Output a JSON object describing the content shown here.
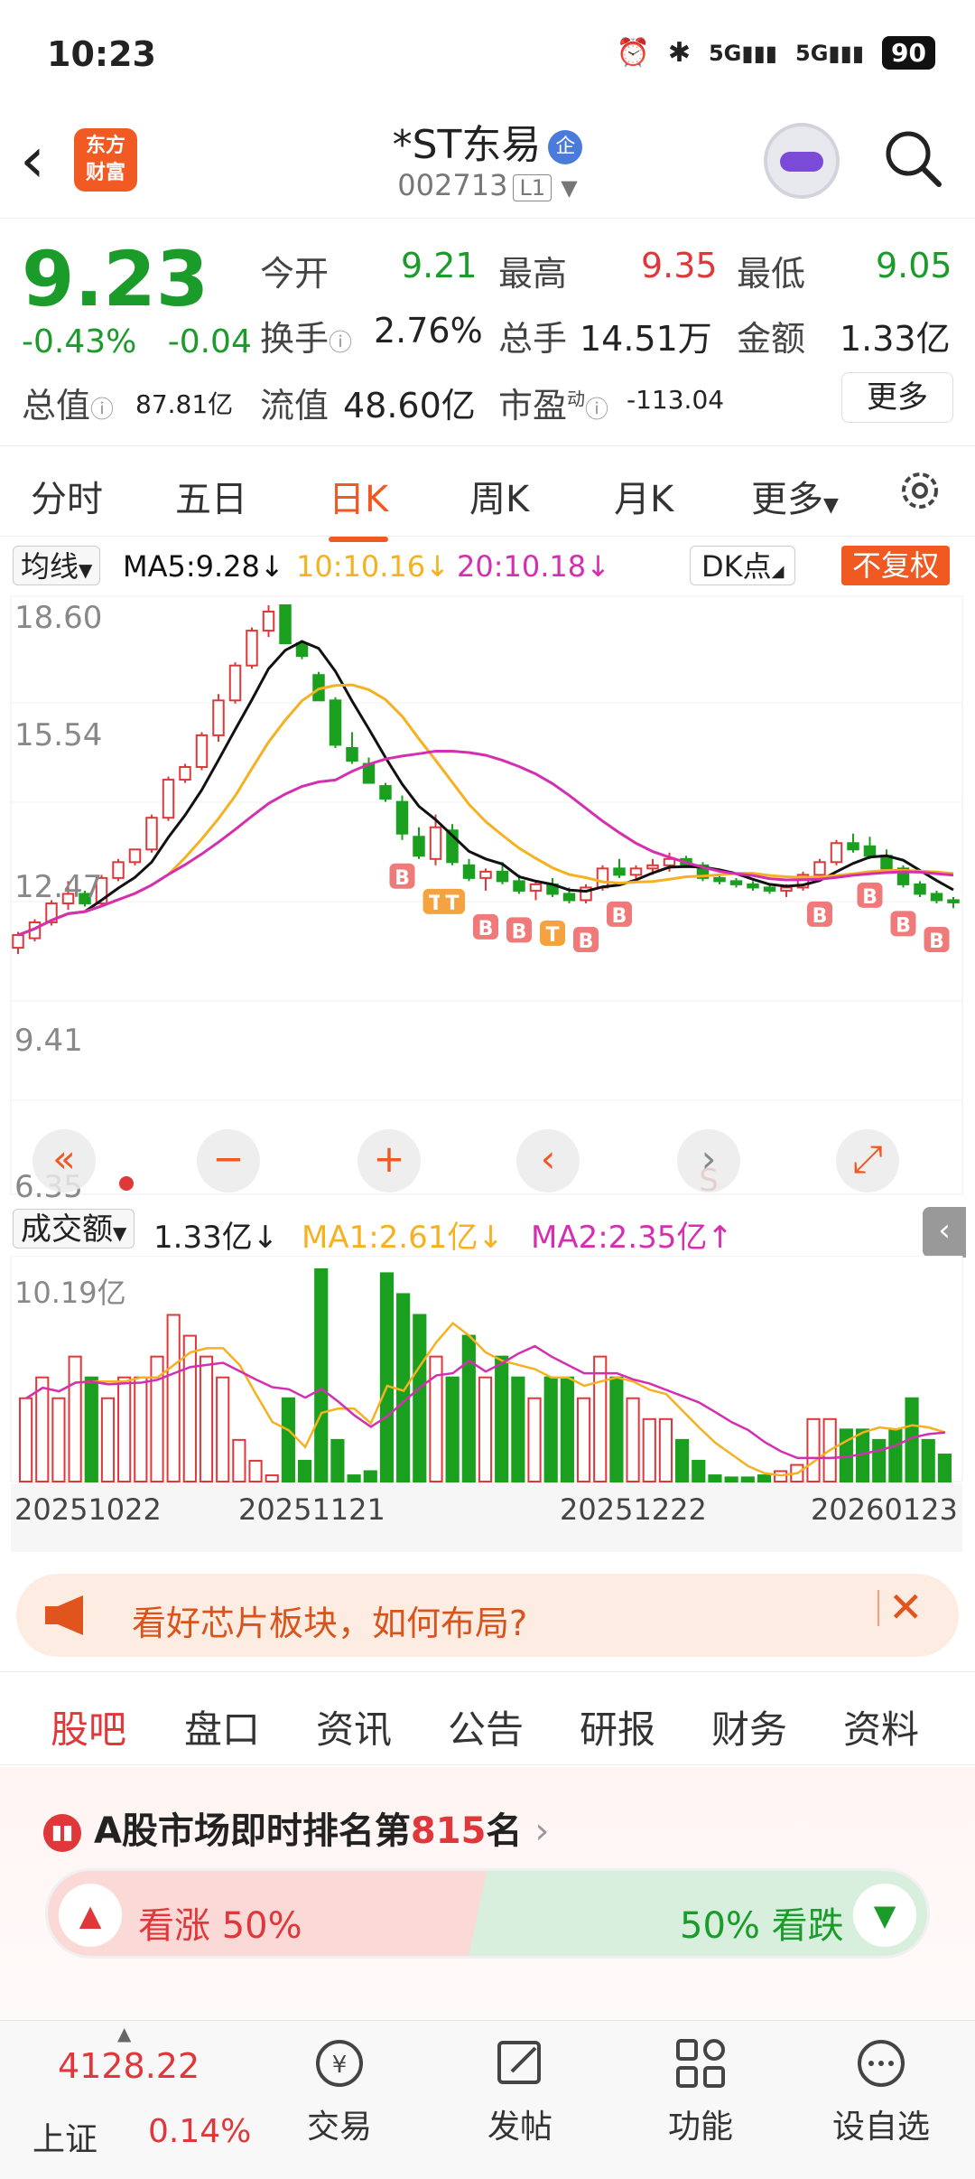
{
  "status": {
    "time": "10:23",
    "battery": "90",
    "signal1": "5G",
    "signal2": "5G"
  },
  "header": {
    "logo_line1": "东方",
    "logo_line2": "财富",
    "name": "*ST东易",
    "badge": "企",
    "code": "002713",
    "level": "L1"
  },
  "quote": {
    "price": "9.23",
    "change_pct": "-0.43%",
    "change": "-0.04",
    "open_label": "今开",
    "open": "9.21",
    "high_label": "最高",
    "high": "9.35",
    "low_label": "最低",
    "low": "9.05",
    "turnover_label": "换手",
    "turnover": "2.76%",
    "volume_label": "总手",
    "volume": "14.51万",
    "amount_label": "金额",
    "amount": "1.33亿",
    "mktcap_label": "总值",
    "mktcap": "87.81亿",
    "float_label": "流值",
    "float": "48.60亿",
    "pe_label": "市盈",
    "pe_sup": "动",
    "pe": "-113.04",
    "more": "更多"
  },
  "ktabs": [
    "分时",
    "五日",
    "日K",
    "周K",
    "月K",
    "更多"
  ],
  "ma": {
    "select": "均线",
    "ma5": "MA5:9.28",
    "ma10": "10:10.16",
    "ma20": "20:10.18",
    "dk": "DK点",
    "adjust": "不复权",
    "colors": {
      "ma5": "#111111",
      "ma10": "#f5b120",
      "ma20": "#d42fb0",
      "up": "#e0373b",
      "down": "#1aa01e"
    }
  },
  "kchart": {
    "y_labels": [
      "18.60",
      "15.54",
      "12.47",
      "9.41",
      "6.35"
    ]
  },
  "vol": {
    "select": "成交额",
    "value": "1.33亿",
    "ma1": "MA1:2.61亿",
    "ma2": "MA2:2.35亿",
    "max_label": "10.19亿"
  },
  "dates": [
    "20251022",
    "20251121",
    "20251222",
    "20260123"
  ],
  "banner": {
    "text": "看好芯片板块，如何布局?"
  },
  "gtabs": [
    "股吧",
    "盘口",
    "资讯",
    "公告",
    "研报",
    "财务",
    "资料"
  ],
  "rank": {
    "prefix": "A股市场即时排名第",
    "num": "815",
    "suffix": "名",
    "up": "看涨 50%",
    "down": "50% 看跌"
  },
  "bottom": {
    "index_value": "4128.22",
    "index_name": "上证",
    "index_chg": "0.14%",
    "trade": "交易",
    "post": "发帖",
    "func": "功能",
    "watch": "设自选"
  }
}
